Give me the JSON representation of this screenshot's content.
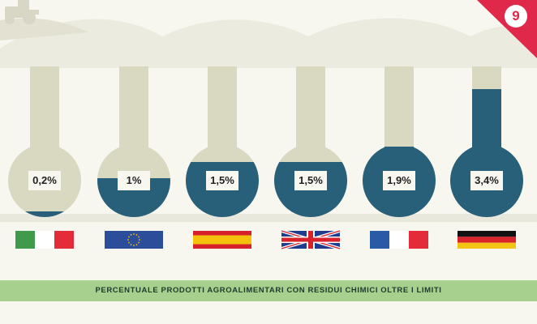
{
  "page_number": "9",
  "chart_data": {
    "type": "bar",
    "title": "PERCENTUALE PRODOTTI AGROALIMENTARI CON RESIDUI CHIMICI OLTRE I LIMITI",
    "categories": [
      "Italia",
      "UE",
      "Spagna",
      "Regno Unito",
      "Francia",
      "Germania"
    ],
    "values": [
      0.2,
      1.0,
      1.5,
      1.5,
      1.9,
      3.4
    ],
    "labels": [
      "0,2%",
      "1%",
      "1,5%",
      "1,5%",
      "1,9%",
      "3,4%"
    ],
    "flags": [
      "italy-flag",
      "eu-flag",
      "spain-flag",
      "uk-flag",
      "france-flag",
      "germany-flag"
    ],
    "colors": {
      "liquid": "#28607a",
      "glass": "#d9d8c0",
      "banner": "#a7d08f",
      "accent": "#e0294a"
    }
  }
}
